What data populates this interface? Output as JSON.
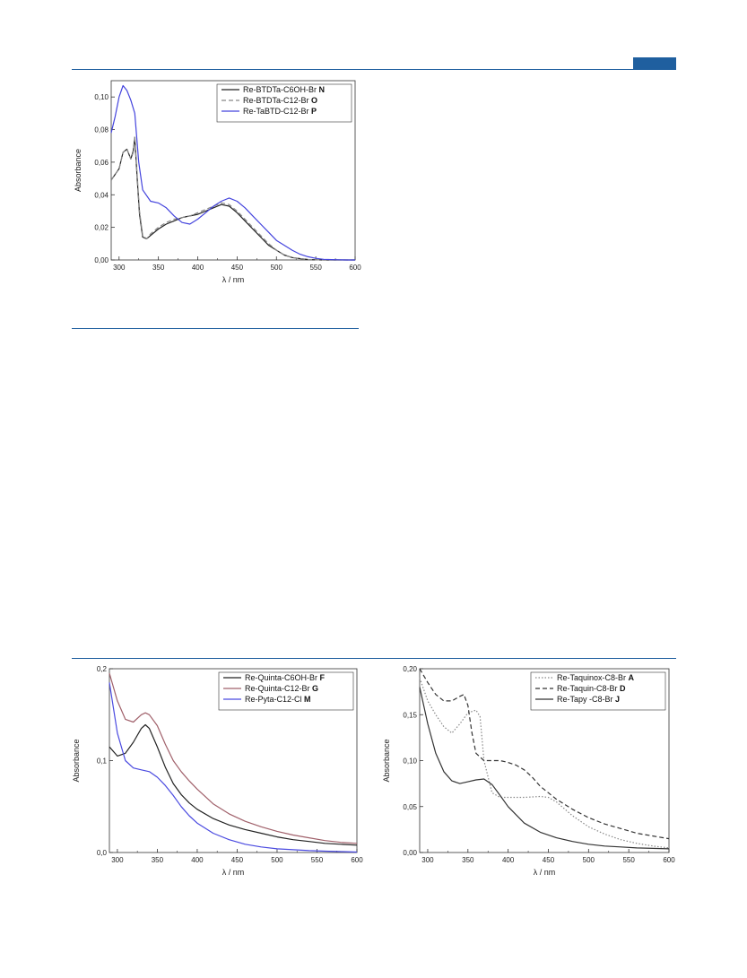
{
  "page": {
    "header_tab_color": "#1f5f9f",
    "rule_color": "#1f5f9f"
  },
  "chart_data": [
    {
      "type": "line",
      "id": "chart-top",
      "xlabel": "λ / nm",
      "ylabel": "Absorbance",
      "xlim": [
        290,
        600
      ],
      "ylim": [
        0,
        0.11
      ],
      "x_ticks": [
        300,
        350,
        400,
        450,
        500,
        550,
        600
      ],
      "x_tick_labels": [
        "300",
        "350",
        "400",
        "450",
        "500",
        "550",
        "600"
      ],
      "y_ticks": [
        0,
        0.02,
        0.04,
        0.06,
        0.08,
        0.1
      ],
      "y_tick_labels": [
        "0,00",
        "0,02",
        "0,04",
        "0,06",
        "0,08",
        "0,10"
      ],
      "legend_position": "top-right",
      "grid": false,
      "series": [
        {
          "name": "Re-BTDTa-C6OH-Br",
          "label_suffix": "N",
          "color": "#222222",
          "dash": "solid",
          "x": [
            290,
            300,
            305,
            310,
            315,
            318,
            320,
            323,
            326,
            330,
            335,
            340,
            350,
            360,
            370,
            380,
            390,
            400,
            410,
            420,
            430,
            440,
            450,
            460,
            470,
            480,
            490,
            500,
            510,
            520,
            530,
            540,
            550,
            560,
            570,
            580,
            590,
            600
          ],
          "y": [
            0.049,
            0.056,
            0.066,
            0.068,
            0.062,
            0.067,
            0.075,
            0.05,
            0.028,
            0.014,
            0.013,
            0.015,
            0.019,
            0.022,
            0.024,
            0.026,
            0.027,
            0.028,
            0.03,
            0.032,
            0.034,
            0.033,
            0.029,
            0.024,
            0.019,
            0.014,
            0.009,
            0.006,
            0.003,
            0.0015,
            0.0008,
            0.0003,
            0.0001,
            0,
            0,
            0,
            0,
            0
          ]
        },
        {
          "name": "Re-BTDTa-C12-Br",
          "label_suffix": "O",
          "color": "#888888",
          "dash": "dashed",
          "x": [
            290,
            300,
            305,
            310,
            315,
            318,
            320,
            323,
            326,
            330,
            335,
            340,
            350,
            360,
            370,
            380,
            390,
            400,
            410,
            420,
            430,
            440,
            450,
            460,
            470,
            480,
            490,
            500,
            510,
            520,
            530,
            540,
            550,
            560,
            570,
            580,
            590,
            600
          ],
          "y": [
            0.049,
            0.056,
            0.066,
            0.068,
            0.062,
            0.066,
            0.076,
            0.052,
            0.03,
            0.015,
            0.013,
            0.016,
            0.02,
            0.023,
            0.025,
            0.026,
            0.027,
            0.029,
            0.031,
            0.033,
            0.035,
            0.034,
            0.03,
            0.025,
            0.02,
            0.015,
            0.01,
            0.006,
            0.003,
            0.0015,
            0.0008,
            0.0003,
            0.0001,
            0,
            0,
            0,
            0,
            0
          ]
        },
        {
          "name": "Re-TaBTD-C12-Br",
          "label_suffix": "P",
          "color": "#4444dd",
          "dash": "solid",
          "x": [
            290,
            295,
            300,
            305,
            310,
            315,
            320,
            325,
            330,
            340,
            350,
            360,
            370,
            380,
            390,
            400,
            410,
            420,
            430,
            440,
            450,
            460,
            470,
            480,
            490,
            500,
            510,
            520,
            530,
            540,
            550,
            560,
            570,
            580,
            590,
            600
          ],
          "y": [
            0.078,
            0.088,
            0.1,
            0.107,
            0.104,
            0.098,
            0.09,
            0.06,
            0.043,
            0.036,
            0.035,
            0.032,
            0.027,
            0.023,
            0.022,
            0.025,
            0.029,
            0.033,
            0.036,
            0.038,
            0.036,
            0.032,
            0.027,
            0.022,
            0.017,
            0.012,
            0.009,
            0.006,
            0.0035,
            0.002,
            0.001,
            0.0004,
            0.0002,
            0.0001,
            0,
            0
          ]
        }
      ]
    },
    {
      "type": "line",
      "id": "chart-bottom-left",
      "xlabel": "λ / nm",
      "ylabel": "Absorbance",
      "xlim": [
        290,
        600
      ],
      "ylim": [
        0,
        0.2
      ],
      "x_ticks": [
        300,
        350,
        400,
        450,
        500,
        550,
        600
      ],
      "x_tick_labels": [
        "300",
        "350",
        "400",
        "450",
        "500",
        "550",
        "600"
      ],
      "y_ticks": [
        0,
        0.1,
        0.2
      ],
      "y_tick_labels": [
        "0,0",
        "0,1",
        "0,2"
      ],
      "legend_position": "top-right",
      "grid": false,
      "series": [
        {
          "name": "Re-Quinta-C6OH-Br",
          "label_suffix": "F",
          "color": "#222222",
          "dash": "solid",
          "x": [
            290,
            300,
            310,
            320,
            330,
            335,
            340,
            350,
            360,
            370,
            380,
            390,
            400,
            420,
            440,
            460,
            480,
            500,
            520,
            540,
            560,
            580,
            600
          ],
          "y": [
            0.115,
            0.105,
            0.108,
            0.12,
            0.135,
            0.139,
            0.135,
            0.115,
            0.093,
            0.075,
            0.063,
            0.054,
            0.047,
            0.037,
            0.03,
            0.025,
            0.021,
            0.017,
            0.014,
            0.012,
            0.01,
            0.009,
            0.008
          ]
        },
        {
          "name": "Re-Quinta-C12-Br",
          "label_suffix": "G",
          "color": "#a0606a",
          "dash": "solid",
          "x": [
            290,
            300,
            310,
            320,
            330,
            335,
            340,
            350,
            360,
            370,
            380,
            390,
            400,
            420,
            440,
            460,
            480,
            500,
            520,
            540,
            560,
            580,
            600
          ],
          "y": [
            0.195,
            0.165,
            0.145,
            0.142,
            0.15,
            0.152,
            0.15,
            0.138,
            0.118,
            0.1,
            0.088,
            0.078,
            0.069,
            0.053,
            0.042,
            0.034,
            0.028,
            0.023,
            0.019,
            0.016,
            0.013,
            0.011,
            0.01
          ]
        },
        {
          "name": "Re-Pyta-C12-Cl",
          "label_suffix": "M",
          "color": "#4a4ae0",
          "dash": "solid",
          "x": [
            290,
            300,
            310,
            320,
            330,
            340,
            350,
            360,
            370,
            380,
            390,
            400,
            420,
            440,
            460,
            480,
            500,
            520,
            540,
            560,
            580,
            600
          ],
          "y": [
            0.185,
            0.13,
            0.1,
            0.092,
            0.09,
            0.088,
            0.082,
            0.073,
            0.062,
            0.05,
            0.04,
            0.032,
            0.021,
            0.014,
            0.009,
            0.006,
            0.004,
            0.003,
            0.002,
            0.0015,
            0.001,
            0.0005
          ]
        }
      ]
    },
    {
      "type": "line",
      "id": "chart-bottom-right",
      "xlabel": "λ / nm",
      "ylabel": "Absorbance",
      "xlim": [
        290,
        600
      ],
      "ylim": [
        0,
        0.2
      ],
      "x_ticks": [
        300,
        350,
        400,
        450,
        500,
        550,
        600
      ],
      "x_tick_labels": [
        "300",
        "350",
        "400",
        "450",
        "500",
        "550",
        "600"
      ],
      "y_ticks": [
        0,
        0.05,
        0.1,
        0.15,
        0.2
      ],
      "y_tick_labels": [
        "0,00",
        "0,05",
        "0,10",
        "0,15",
        "0,20"
      ],
      "legend_position": "top-right",
      "grid": false,
      "series": [
        {
          "name": "Re-Taquinox-C8-Br",
          "label_suffix": "A",
          "color": "#888888",
          "dash": "dotted",
          "x": [
            290,
            300,
            310,
            320,
            330,
            340,
            350,
            360,
            365,
            370,
            380,
            390,
            400,
            420,
            440,
            450,
            460,
            480,
            500,
            520,
            540,
            560,
            580,
            600
          ],
          "y": [
            0.19,
            0.165,
            0.15,
            0.137,
            0.13,
            0.14,
            0.152,
            0.155,
            0.148,
            0.1,
            0.065,
            0.06,
            0.06,
            0.06,
            0.061,
            0.06,
            0.055,
            0.04,
            0.028,
            0.02,
            0.014,
            0.01,
            0.007,
            0.005
          ]
        },
        {
          "name": "Re-Taquin-C8-Br",
          "label_suffix": "D",
          "color": "#333333",
          "dash": "dashed",
          "x": [
            290,
            300,
            310,
            320,
            330,
            340,
            345,
            350,
            355,
            360,
            370,
            380,
            390,
            400,
            410,
            420,
            430,
            440,
            460,
            480,
            500,
            520,
            540,
            560,
            580,
            600
          ],
          "y": [
            0.2,
            0.185,
            0.172,
            0.165,
            0.165,
            0.17,
            0.172,
            0.16,
            0.13,
            0.108,
            0.1,
            0.1,
            0.1,
            0.098,
            0.095,
            0.09,
            0.082,
            0.072,
            0.058,
            0.047,
            0.038,
            0.031,
            0.026,
            0.021,
            0.018,
            0.015
          ]
        },
        {
          "name": "Re-Tapy -C8-Br",
          "label_suffix": "J",
          "color": "#333333",
          "dash": "solid",
          "x": [
            290,
            300,
            310,
            320,
            330,
            340,
            350,
            360,
            370,
            380,
            390,
            400,
            420,
            440,
            460,
            480,
            500,
            520,
            540,
            560,
            580,
            600
          ],
          "y": [
            0.18,
            0.14,
            0.108,
            0.088,
            0.078,
            0.075,
            0.077,
            0.079,
            0.08,
            0.074,
            0.062,
            0.05,
            0.032,
            0.022,
            0.016,
            0.012,
            0.009,
            0.007,
            0.006,
            0.005,
            0.0045,
            0.004
          ]
        }
      ]
    }
  ]
}
